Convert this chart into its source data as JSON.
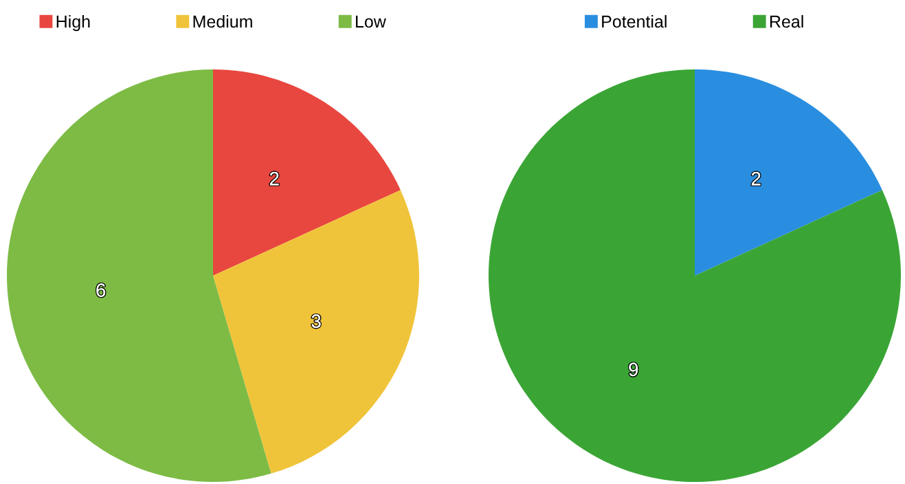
{
  "chart_data": [
    {
      "type": "pie",
      "categories": [
        "High",
        "Medium",
        "Low"
      ],
      "values": [
        2,
        3,
        6
      ],
      "colors": [
        "#e8473f",
        "#f0c43a",
        "#7dbb45"
      ],
      "data_labels": true,
      "legend": "top"
    },
    {
      "type": "pie",
      "categories": [
        "Potential",
        "Real"
      ],
      "values": [
        2,
        9
      ],
      "colors": [
        "#2a8ee0",
        "#3aa535"
      ],
      "data_labels": true,
      "legend": "top"
    }
  ]
}
